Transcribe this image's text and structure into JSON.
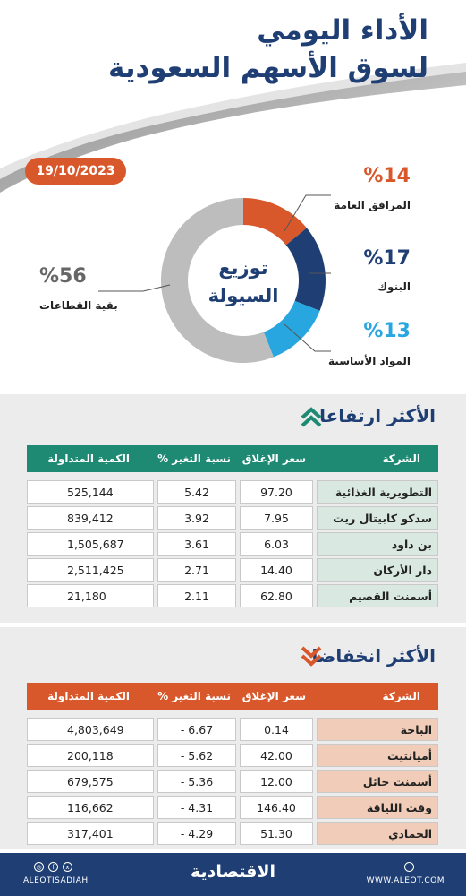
{
  "header": {
    "title_line1": "الأداء اليومي",
    "title_line2": "لسوق الأسهم السعودية",
    "date": "19/10/2023"
  },
  "liquidity": {
    "center_line1": "توزيع",
    "center_line2": "السيولة",
    "sectors": [
      {
        "name": "المرافق العامة",
        "pct_label": "%14",
        "value": 14,
        "color": "#d9582b"
      },
      {
        "name": "البنوك",
        "pct_label": "%17",
        "value": 17,
        "color": "#1f3f74"
      },
      {
        "name": "المواد الأساسية",
        "pct_label": "%13",
        "value": 13,
        "color": "#27a6e0"
      },
      {
        "name": "بقية القطاعات",
        "pct_label": "%56",
        "value": 56,
        "color": "#bdbdbd"
      }
    ]
  },
  "columns": {
    "company": "الشركة",
    "close": "سعر الإغلاق",
    "change": "نسبة التغير %",
    "volume": "الكمية المتداولة"
  },
  "gainers": {
    "title": "الأكثر ارتفاعا",
    "rows": [
      {
        "name": "التطويرية الغذائية",
        "close": "97.20",
        "change": "5.42",
        "volume": "525,144"
      },
      {
        "name": "سدكو كابيتال ريت",
        "close": "7.95",
        "change": "3.92",
        "volume": "839,412"
      },
      {
        "name": "بن داود",
        "close": "6.03",
        "change": "3.61",
        "volume": "1,505,687"
      },
      {
        "name": "دار الأركان",
        "close": "14.40",
        "change": "2.71",
        "volume": "2,511,425"
      },
      {
        "name": "أسمنت القصيم",
        "close": "62.80",
        "change": "2.11",
        "volume": "21,180"
      }
    ]
  },
  "losers": {
    "title": "الأكثر انخفاضا",
    "rows": [
      {
        "name": "الباحة",
        "close": "0.14",
        "change": "- 6.67",
        "volume": "4,803,649"
      },
      {
        "name": "أميانتيت",
        "close": "42.00",
        "change": "- 5.62",
        "volume": "200,118"
      },
      {
        "name": "أسمنت حائل",
        "close": "12.00",
        "change": "- 5.36",
        "volume": "679,575"
      },
      {
        "name": "وقت اللياقة",
        "close": "146.40",
        "change": "- 4.31",
        "volume": "116,662"
      },
      {
        "name": "الحمادي",
        "close": "51.30",
        "change": "- 4.29",
        "volume": "317,401"
      }
    ]
  },
  "footer": {
    "handle": "ALEQTISADIAH",
    "logo": "الاقتصادية",
    "site": "WWW.ALEQT.COM"
  },
  "icons": {
    "social": [
      "instagram-icon",
      "facebook-icon",
      "x-icon"
    ],
    "site": "globe-icon",
    "gainers_arrow": "double-chevron-up-icon",
    "losers_arrow": "double-chevron-down-icon"
  }
}
